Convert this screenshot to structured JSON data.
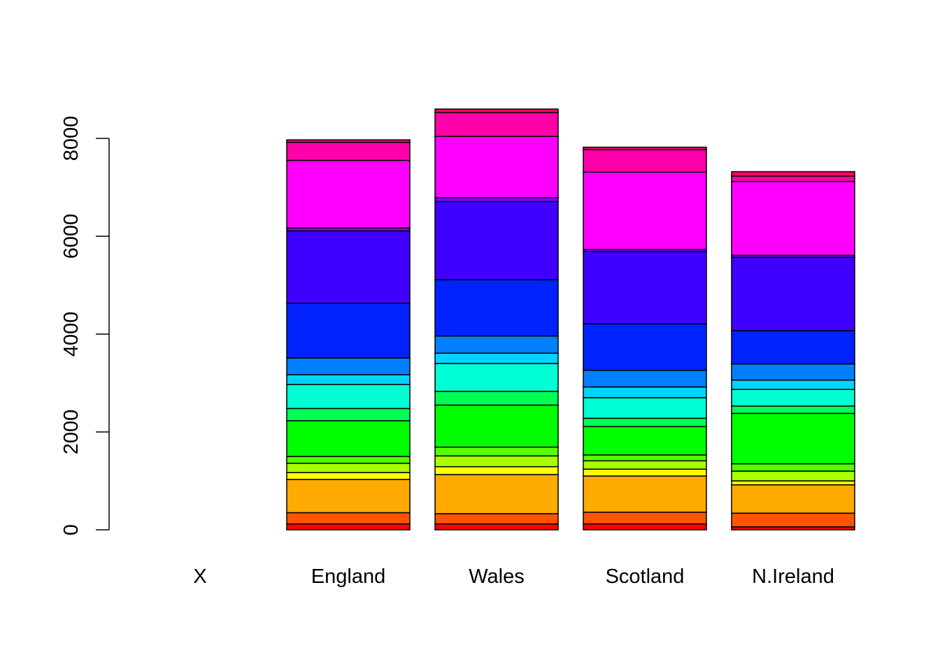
{
  "chart_data": {
    "type": "bar",
    "stacked": true,
    "title": "",
    "xlabel": "",
    "ylabel": "",
    "ylim": [
      0,
      8600
    ],
    "yticks": [
      0,
      2000,
      4000,
      6000,
      8000
    ],
    "ytick_labels": [
      "0",
      "2000",
      "4000",
      "6000",
      "8000"
    ],
    "categories": [
      "X",
      "England",
      "Wales",
      "Scotland",
      "N.Ireland"
    ],
    "series": [
      {
        "color": "#FF0000",
        "values": [
          0,
          120,
          120,
          120,
          60
        ]
      },
      {
        "color": "#FF5500",
        "values": [
          0,
          230,
          210,
          240,
          280
        ]
      },
      {
        "color": "#FFAA00",
        "values": [
          0,
          680,
          800,
          740,
          580
        ]
      },
      {
        "color": "#FFFF00",
        "values": [
          0,
          140,
          160,
          140,
          80
        ]
      },
      {
        "color": "#AAFF00",
        "values": [
          0,
          190,
          220,
          170,
          200
        ]
      },
      {
        "color": "#55FF00",
        "values": [
          0,
          140,
          180,
          120,
          150
        ]
      },
      {
        "color": "#00FF00",
        "values": [
          0,
          730,
          860,
          580,
          1030
        ]
      },
      {
        "color": "#00FF55",
        "values": [
          0,
          250,
          280,
          170,
          150
        ]
      },
      {
        "color": "#00FFAA",
        "values": [
          0,
          0,
          0,
          0,
          0
        ]
      },
      {
        "color": "#00FFD5",
        "values": [
          0,
          490,
          570,
          420,
          340
        ]
      },
      {
        "color": "#00D5FF",
        "values": [
          0,
          200,
          210,
          220,
          190
        ]
      },
      {
        "color": "#0080FF",
        "values": [
          0,
          340,
          350,
          340,
          330
        ]
      },
      {
        "color": "#0022FF",
        "values": [
          0,
          1120,
          1150,
          950,
          680
        ]
      },
      {
        "color": "#4000FF",
        "values": [
          0,
          1480,
          1600,
          1480,
          1500
        ]
      },
      {
        "color": "#8000FF",
        "values": [
          0,
          60,
          80,
          40,
          40
        ]
      },
      {
        "color": "#FF00FF",
        "values": [
          0,
          1380,
          1250,
          1580,
          1510
        ]
      },
      {
        "color": "#FF00AA",
        "values": [
          0,
          370,
          490,
          460,
          110
        ]
      },
      {
        "color": "#FF0066",
        "values": [
          0,
          50,
          70,
          50,
          90
        ]
      }
    ]
  }
}
